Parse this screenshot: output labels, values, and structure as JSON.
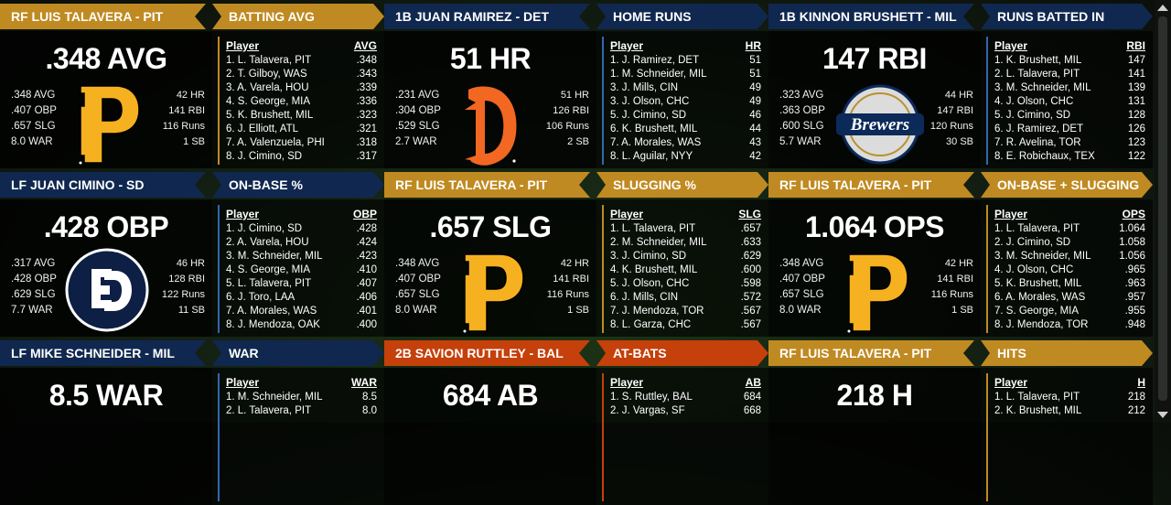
{
  "colors": {
    "gold": "#c08a22",
    "navy": "#10284f",
    "orange": "#c5400a"
  },
  "panels": [
    {
      "theme": "gold",
      "logo": "pirates-logo",
      "title": "RF LUIS TALAVERA - PIT",
      "category": "BATTING AVG",
      "big": ".348 AVG",
      "left_stats": [
        ".348 AVG",
        ".407 OBP",
        ".657 SLG",
        "8.0 WAR"
      ],
      "right_stats": [
        "42 HR",
        "141 RBI",
        "116 Runs",
        "1 SB"
      ],
      "col_player": "Player",
      "col_stat": "AVG",
      "rows": [
        {
          "name": "1. L. Talavera, PIT",
          "val": ".348"
        },
        {
          "name": "2. T. Gilboy, WAS",
          "val": ".343"
        },
        {
          "name": "3. A. Varela, HOU",
          "val": ".339"
        },
        {
          "name": "4. S. George, MIA",
          "val": ".336"
        },
        {
          "name": "5. K. Brushett, MIL",
          "val": ".323"
        },
        {
          "name": "6. J. Elliott, ATL",
          "val": ".321"
        },
        {
          "name": "7. A. Valenzuela, PHI",
          "val": ".318"
        },
        {
          "name": "8. J. Cimino, SD",
          "val": ".317"
        }
      ]
    },
    {
      "theme": "navy",
      "logo": "tigers-logo",
      "title": "1B JUAN RAMIREZ - DET",
      "category": "HOME RUNS",
      "big": "51 HR",
      "left_stats": [
        ".231 AVG",
        ".304 OBP",
        ".529 SLG",
        "2.7 WAR"
      ],
      "right_stats": [
        "51 HR",
        "126 RBI",
        "106 Runs",
        "2 SB"
      ],
      "col_player": "Player",
      "col_stat": "HR",
      "rows": [
        {
          "name": "1. J. Ramirez, DET",
          "val": "51"
        },
        {
          "name": "1. M. Schneider, MIL",
          "val": "51"
        },
        {
          "name": "3. J. Mills, CIN",
          "val": "49"
        },
        {
          "name": "3. J. Olson, CHC",
          "val": "49"
        },
        {
          "name": "5. J. Cimino, SD",
          "val": "46"
        },
        {
          "name": "6. K. Brushett, MIL",
          "val": "44"
        },
        {
          "name": "7. A. Morales, WAS",
          "val": "43"
        },
        {
          "name": "8. L. Aguilar, NYY",
          "val": "42"
        }
      ]
    },
    {
      "theme": "navy",
      "logo": "brewers-logo",
      "title": "1B KINNON BRUSHETT - MIL",
      "category": "RUNS BATTED IN",
      "big": "147 RBI",
      "left_stats": [
        ".323 AVG",
        ".363 OBP",
        ".600 SLG",
        "5.7 WAR"
      ],
      "right_stats": [
        "44 HR",
        "147 RBI",
        "120 Runs",
        "30 SB"
      ],
      "logo_text": "Brewers",
      "col_player": "Player",
      "col_stat": "RBI",
      "rows": [
        {
          "name": "1. K. Brushett, MIL",
          "val": "147"
        },
        {
          "name": "2. L. Talavera, PIT",
          "val": "141"
        },
        {
          "name": "3. M. Schneider, MIL",
          "val": "139"
        },
        {
          "name": "4. J. Olson, CHC",
          "val": "131"
        },
        {
          "name": "5. J. Cimino, SD",
          "val": "128"
        },
        {
          "name": "6. J. Ramirez, DET",
          "val": "126"
        },
        {
          "name": "7. R. Avelina, TOR",
          "val": "123"
        },
        {
          "name": "8. E. Robichaux, TEX",
          "val": "122"
        }
      ]
    },
    {
      "theme": "navy",
      "logo": "padres-logo",
      "title": "LF JUAN CIMINO - SD",
      "category": "ON-BASE %",
      "big": ".428 OBP",
      "left_stats": [
        ".317 AVG",
        ".428 OBP",
        ".629 SLG",
        "7.7 WAR"
      ],
      "right_stats": [
        "46 HR",
        "128 RBI",
        "122 Runs",
        "11 SB"
      ],
      "col_player": "Player",
      "col_stat": "OBP",
      "rows": [
        {
          "name": "1. J. Cimino, SD",
          "val": ".428"
        },
        {
          "name": "2. A. Varela, HOU",
          "val": ".424"
        },
        {
          "name": "3. M. Schneider, MIL",
          "val": ".423"
        },
        {
          "name": "4. S. George, MIA",
          "val": ".410"
        },
        {
          "name": "5. L. Talavera, PIT",
          "val": ".407"
        },
        {
          "name": "6. J. Toro, LAA",
          "val": ".406"
        },
        {
          "name": "7. A. Morales, WAS",
          "val": ".401"
        },
        {
          "name": "8. J. Mendoza, OAK",
          "val": ".400"
        }
      ]
    },
    {
      "theme": "gold",
      "logo": "pirates-logo",
      "title": "RF LUIS TALAVERA - PIT",
      "category": "SLUGGING %",
      "big": ".657 SLG",
      "left_stats": [
        ".348 AVG",
        ".407 OBP",
        ".657 SLG",
        "8.0 WAR"
      ],
      "right_stats": [
        "42 HR",
        "141 RBI",
        "116 Runs",
        "1 SB"
      ],
      "col_player": "Player",
      "col_stat": "SLG",
      "rows": [
        {
          "name": "1. L. Talavera, PIT",
          "val": ".657"
        },
        {
          "name": "2. M. Schneider, MIL",
          "val": ".633"
        },
        {
          "name": "3. J. Cimino, SD",
          "val": ".629"
        },
        {
          "name": "4. K. Brushett, MIL",
          "val": ".600"
        },
        {
          "name": "5. J. Olson, CHC",
          "val": ".598"
        },
        {
          "name": "6. J. Mills, CIN",
          "val": ".572"
        },
        {
          "name": "7. J. Mendoza, TOR",
          "val": ".567"
        },
        {
          "name": "8. L. Garza, CHC",
          "val": ".567"
        }
      ]
    },
    {
      "theme": "gold",
      "logo": "pirates-logo",
      "title": "RF LUIS TALAVERA - PIT",
      "category": "ON-BASE + SLUGGING",
      "big": "1.064 OPS",
      "left_stats": [
        ".348 AVG",
        ".407 OBP",
        ".657 SLG",
        "8.0 WAR"
      ],
      "right_stats": [
        "42 HR",
        "141 RBI",
        "116 Runs",
        "1 SB"
      ],
      "col_player": "Player",
      "col_stat": "OPS",
      "rows": [
        {
          "name": "1. L. Talavera, PIT",
          "val": "1.064"
        },
        {
          "name": "2. J. Cimino, SD",
          "val": "1.058"
        },
        {
          "name": "3. M. Schneider, MIL",
          "val": "1.056"
        },
        {
          "name": "4. J. Olson, CHC",
          "val": ".965"
        },
        {
          "name": "5. K. Brushett, MIL",
          "val": ".963"
        },
        {
          "name": "6. A. Morales, WAS",
          "val": ".957"
        },
        {
          "name": "7. S. George, MIA",
          "val": ".955"
        },
        {
          "name": "8. J. Mendoza, TOR",
          "val": ".948"
        }
      ]
    },
    {
      "theme": "navy",
      "logo": "",
      "title": "LF MIKE SCHNEIDER - MIL",
      "category": "WAR",
      "big": "8.5 WAR",
      "left_stats": [],
      "right_stats": [],
      "col_player": "Player",
      "col_stat": "WAR",
      "rows": [
        {
          "name": "1. M. Schneider, MIL",
          "val": "8.5"
        },
        {
          "name": "2. L. Talavera, PIT",
          "val": "8.0"
        }
      ]
    },
    {
      "theme": "orange",
      "logo": "",
      "title": "2B SAVION RUTTLEY - BAL",
      "category": "AT-BATS",
      "big": "684 AB",
      "left_stats": [],
      "right_stats": [],
      "col_player": "Player",
      "col_stat": "AB",
      "rows": [
        {
          "name": "1. S. Ruttley, BAL",
          "val": "684"
        },
        {
          "name": "2. J. Vargas, SF",
          "val": "668"
        }
      ]
    },
    {
      "theme": "gold",
      "logo": "",
      "title": "RF LUIS TALAVERA - PIT",
      "category": "HITS",
      "big": "218 H",
      "left_stats": [],
      "right_stats": [],
      "col_player": "Player",
      "col_stat": "H",
      "rows": [
        {
          "name": "1. L. Talavera, PIT",
          "val": "218"
        },
        {
          "name": "2. K. Brushett, MIL",
          "val": "212"
        }
      ]
    }
  ]
}
